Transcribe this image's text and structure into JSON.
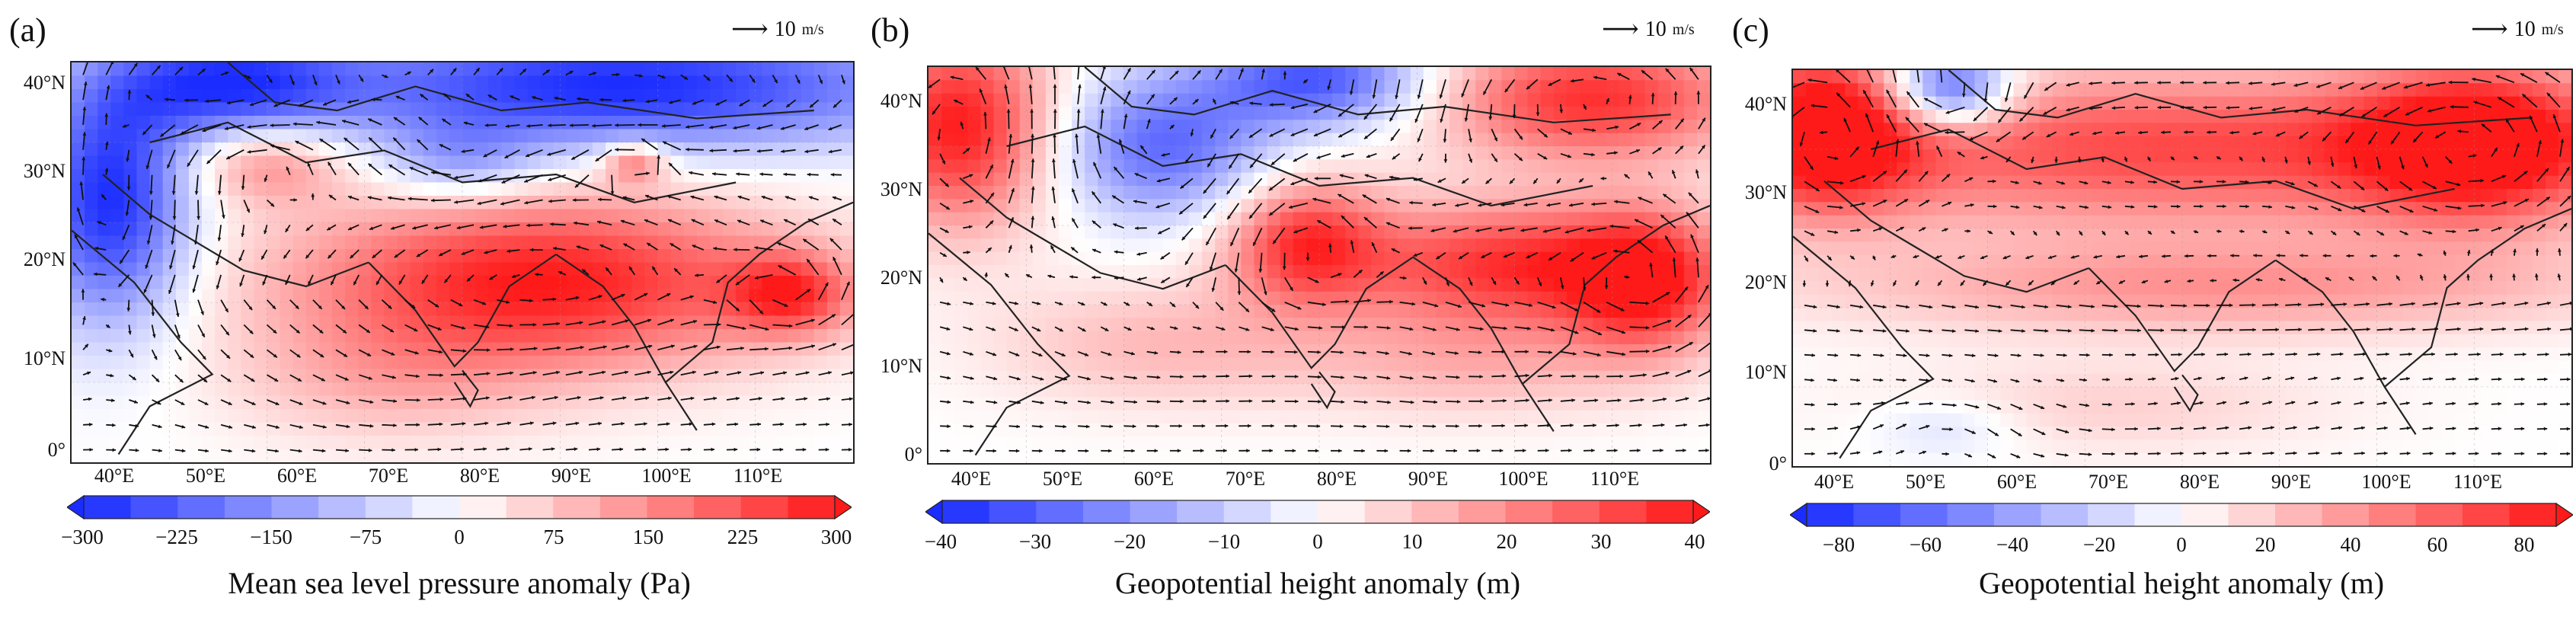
{
  "panels": [
    {
      "id": "a",
      "label": "(a)",
      "vector_key": "10",
      "vector_key_unit_num": "m",
      "vector_key_unit_den": "s",
      "lat_ticks": [
        "40°N",
        "30°N",
        "20°N",
        "10°N",
        "0°"
      ],
      "lon_ticks": [
        "40°E",
        "50°E",
        "60°E",
        "70°E",
        "80°E",
        "90°E",
        "100°E",
        "110°E"
      ],
      "colorbar_ticks": [
        "−300",
        "−225",
        "−150",
        "−75",
        "0",
        "75",
        "150",
        "225",
        "300"
      ],
      "colorbar_label": "Mean sea level pressure anomaly (Pa)"
    },
    {
      "id": "b",
      "label": "(b)",
      "vector_key": "10",
      "vector_key_unit_num": "m",
      "vector_key_unit_den": "s",
      "lat_ticks": [
        "40°N",
        "30°N",
        "20°N",
        "10°N",
        "0°"
      ],
      "lon_ticks": [
        "40°E",
        "50°E",
        "60°E",
        "70°E",
        "80°E",
        "90°E",
        "100°E",
        "110°E"
      ],
      "colorbar_ticks": [
        "−40",
        "−30",
        "−20",
        "−10",
        "0",
        "10",
        "20",
        "30",
        "40"
      ],
      "colorbar_label": "Geopotential height anomaly (m)"
    },
    {
      "id": "c",
      "label": "(c)",
      "vector_key": "10",
      "vector_key_unit_num": "m",
      "vector_key_unit_den": "s",
      "lat_ticks": [
        "40°N",
        "30°N",
        "20°N",
        "10°N",
        "0°"
      ],
      "lon_ticks": [
        "40°E",
        "50°E",
        "60°E",
        "70°E",
        "80°E",
        "90°E",
        "100°E",
        "110°E"
      ],
      "colorbar_ticks": [
        "−80",
        "−60",
        "−40",
        "−20",
        "0",
        "20",
        "40",
        "60",
        "80"
      ],
      "colorbar_label": "Geopotential height anomaly (m)"
    }
  ],
  "colors": {
    "neg": "#1a2cff",
    "zero": "#ffffff",
    "pos": "#ff1a1a",
    "coast": "#222222",
    "vector": "#111111"
  }
}
